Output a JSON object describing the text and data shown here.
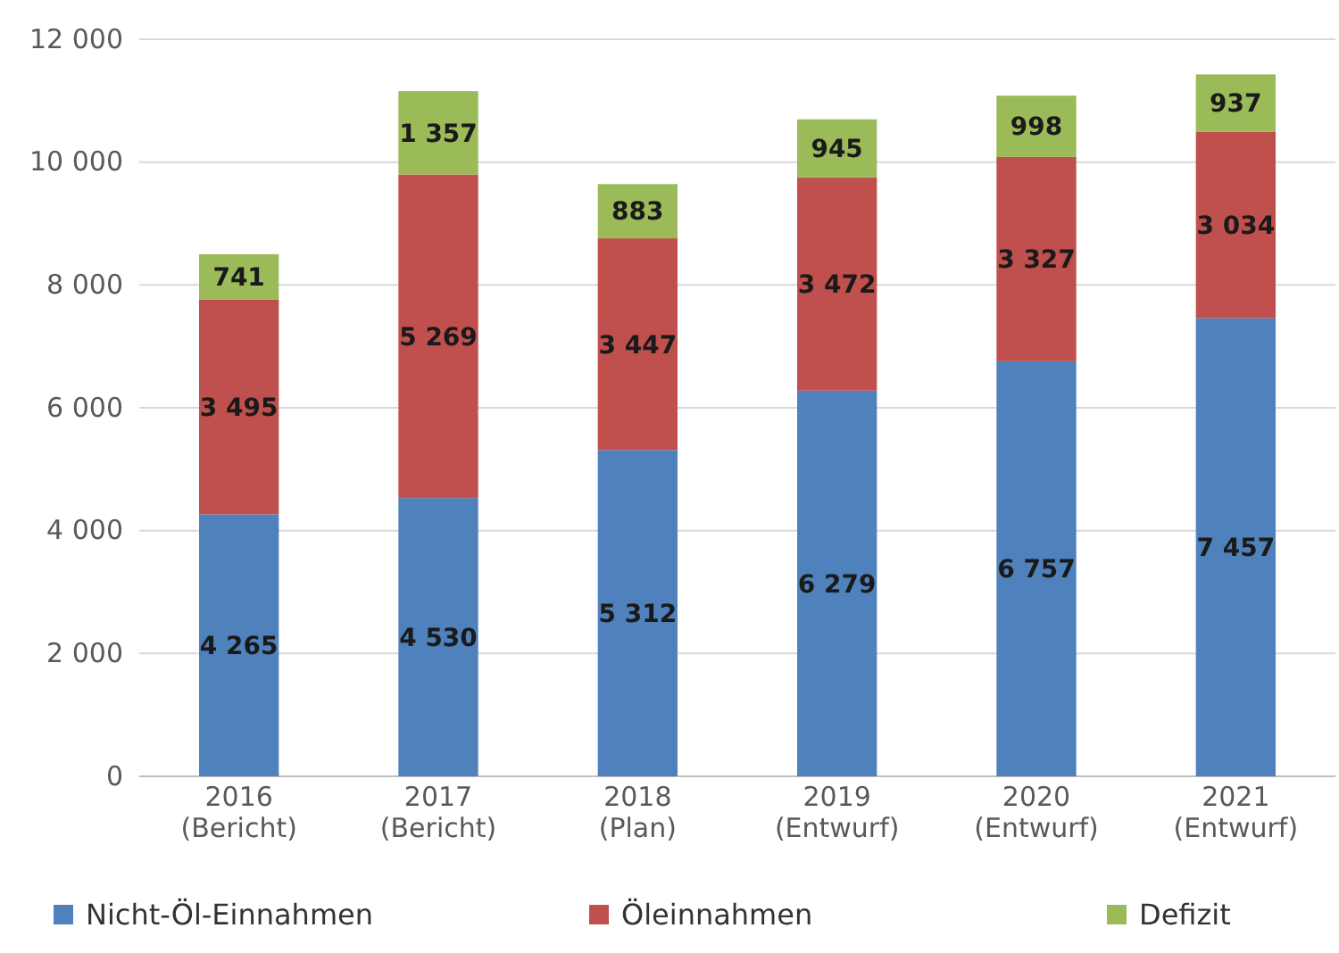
{
  "chart_data": {
    "type": "bar",
    "stacked": true,
    "categories": [
      "2016\n(Bericht)",
      "2017\n(Bericht)",
      "2018\n(Plan)",
      "2019\n(Entwurf)",
      "2020\n(Entwurf)",
      "2021\n(Entwurf)"
    ],
    "series": [
      {
        "name": "Nicht-Öl-Einnahmen",
        "color": "#4f81bd",
        "values": [
          4265,
          4530,
          5312,
          6279,
          6757,
          7457
        ],
        "value_labels": [
          "4 265",
          "4 530",
          "5 312",
          "6 279",
          "6 757",
          "7 457"
        ]
      },
      {
        "name": "Öleinnahmen",
        "color": "#c0504d",
        "values": [
          3495,
          5269,
          3447,
          3472,
          3327,
          3034
        ],
        "value_labels": [
          "3 495",
          "5 269",
          "3 447",
          "3 472",
          "3 327",
          "3 034"
        ]
      },
      {
        "name": "Defizit",
        "color": "#9bbb59",
        "values": [
          741,
          1357,
          883,
          945,
          998,
          937
        ],
        "value_labels": [
          "741",
          "1 357",
          "883",
          "945",
          "998",
          "937"
        ]
      }
    ],
    "ylim": [
      0,
      12000
    ],
    "yticks": [
      0,
      {
        "value": 2000,
        "label": "2 000"
      },
      {
        "value": 4000,
        "label": "4 000"
      },
      {
        "value": 6000,
        "label": "6 000"
      },
      {
        "value": 8000,
        "label": "8 000"
      },
      {
        "value": 10000,
        "label": "10 000"
      },
      {
        "value": 12000,
        "label": "12 000"
      }
    ],
    "grid": "y",
    "legend": "bottom"
  }
}
